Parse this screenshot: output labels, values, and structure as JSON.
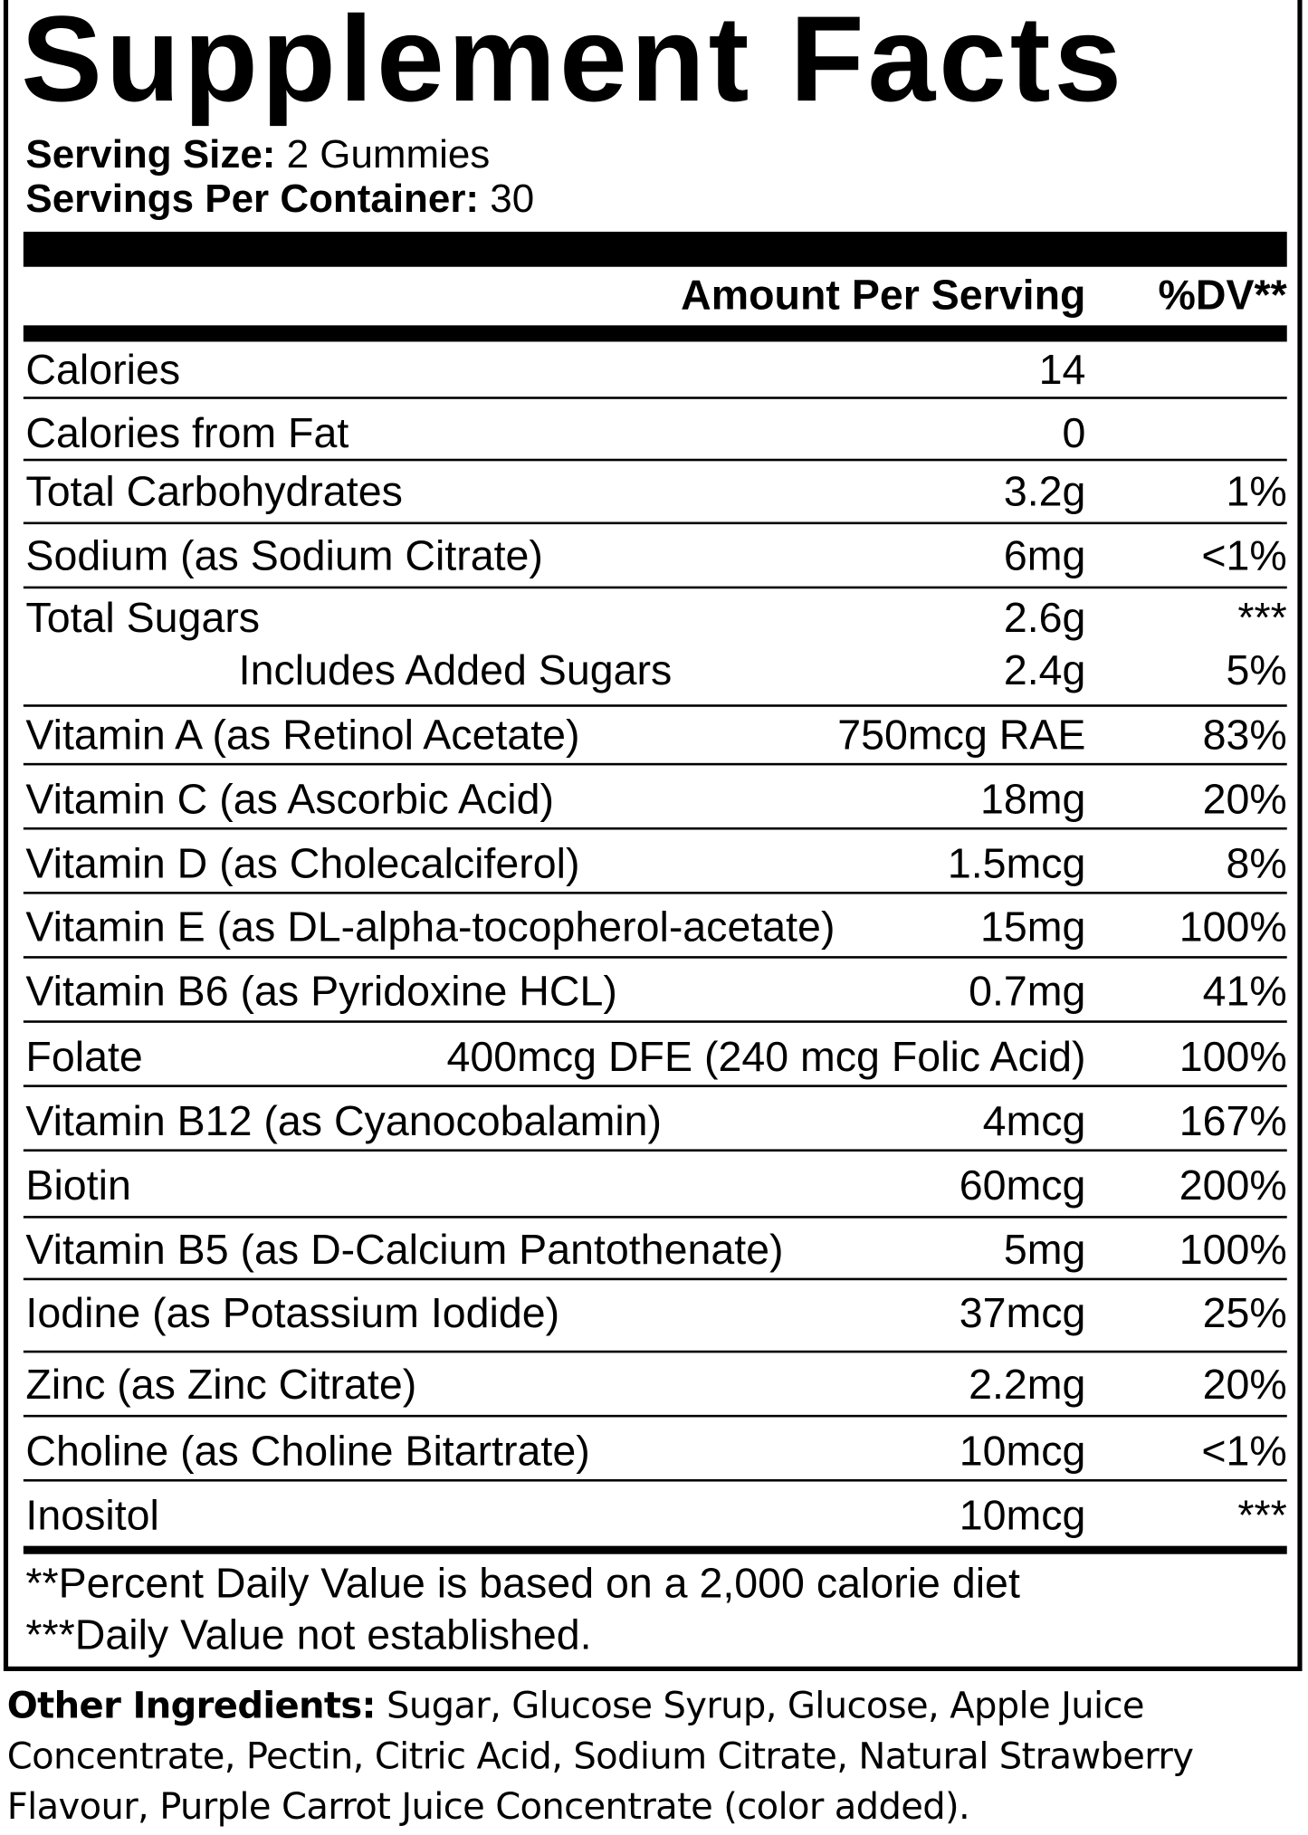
{
  "title": "Supplement Facts",
  "serving_size": {
    "label": "Serving Size:",
    "value": "2 Gummies"
  },
  "servings_per_container": {
    "label": "Servings Per Container:",
    "value": "30"
  },
  "header": {
    "amount": "Amount Per Serving",
    "dv": "%DV**"
  },
  "rows": [
    {
      "name": "Calories",
      "amount": "14"
    },
    {
      "name": "Calories from Fat",
      "amount": "0"
    },
    {
      "name": "Total Carbohydrates",
      "amount": "3.2g",
      "dv": "1%"
    },
    {
      "name": "Sodium (as Sodium Citrate)",
      "amount": "6mg",
      "dv": "<1%"
    },
    {
      "name": "Total Sugars",
      "amount": "2.6g",
      "dv": "***",
      "sub": {
        "name": "Includes Added Sugars",
        "amount": "2.4g",
        "dv": "5%"
      }
    },
    {
      "name": "Vitamin A (as Retinol Acetate)",
      "amount": "750mcg RAE",
      "dv": "83%"
    },
    {
      "name": "Vitamin C (as Ascorbic Acid)",
      "amount": "18mg",
      "dv": "20%"
    },
    {
      "name": "Vitamin D (as Cholecalciferol)",
      "amount": "1.5mcg",
      "dv": "8%"
    },
    {
      "name": "Vitamin E (as DL-alpha-tocopherol-acetate)",
      "amount": "15mg",
      "dv": "100%"
    },
    {
      "name": "Vitamin B6 (as Pyridoxine HCL)",
      "amount": "0.7mg",
      "dv": "41%"
    },
    {
      "name": "Folate",
      "amount": "400mcg DFE (240 mcg Folic Acid)",
      "dv": "100%"
    },
    {
      "name": "Vitamin B12 (as Cyanocobalamin)",
      "amount": "4mcg",
      "dv": "167%"
    },
    {
      "name": "Biotin",
      "amount": "60mcg",
      "dv": "200%"
    },
    {
      "name": "Vitamin B5 (as D-Calcium Pantothenate)",
      "amount": "5mg",
      "dv": "100%"
    },
    {
      "name": "Iodine (as Potassium Iodide)",
      "amount": "37mcg",
      "dv": "25%"
    },
    {
      "name": "Zinc (as Zinc Citrate)",
      "amount": "2.2mg",
      "dv": "20%"
    },
    {
      "name": "Choline (as Choline Bitartrate)",
      "amount": "10mcg",
      "dv": "<1%"
    },
    {
      "name": "Inositol",
      "amount": "10mcg",
      "dv": "***"
    }
  ],
  "footnotes": [
    "**Percent Daily Value is based on a 2,000 calorie diet",
    "***Daily Value not established."
  ],
  "other_ingredients": {
    "label": "Other Ingredients:",
    "text": "Sugar, Glucose Syrup, Glucose, Apple Juice Concentrate, Pectin, Citric Acid, Sodium Citrate, Natural Strawberry Flavour, Purple Carrot Juice Concentrate (color added)."
  }
}
